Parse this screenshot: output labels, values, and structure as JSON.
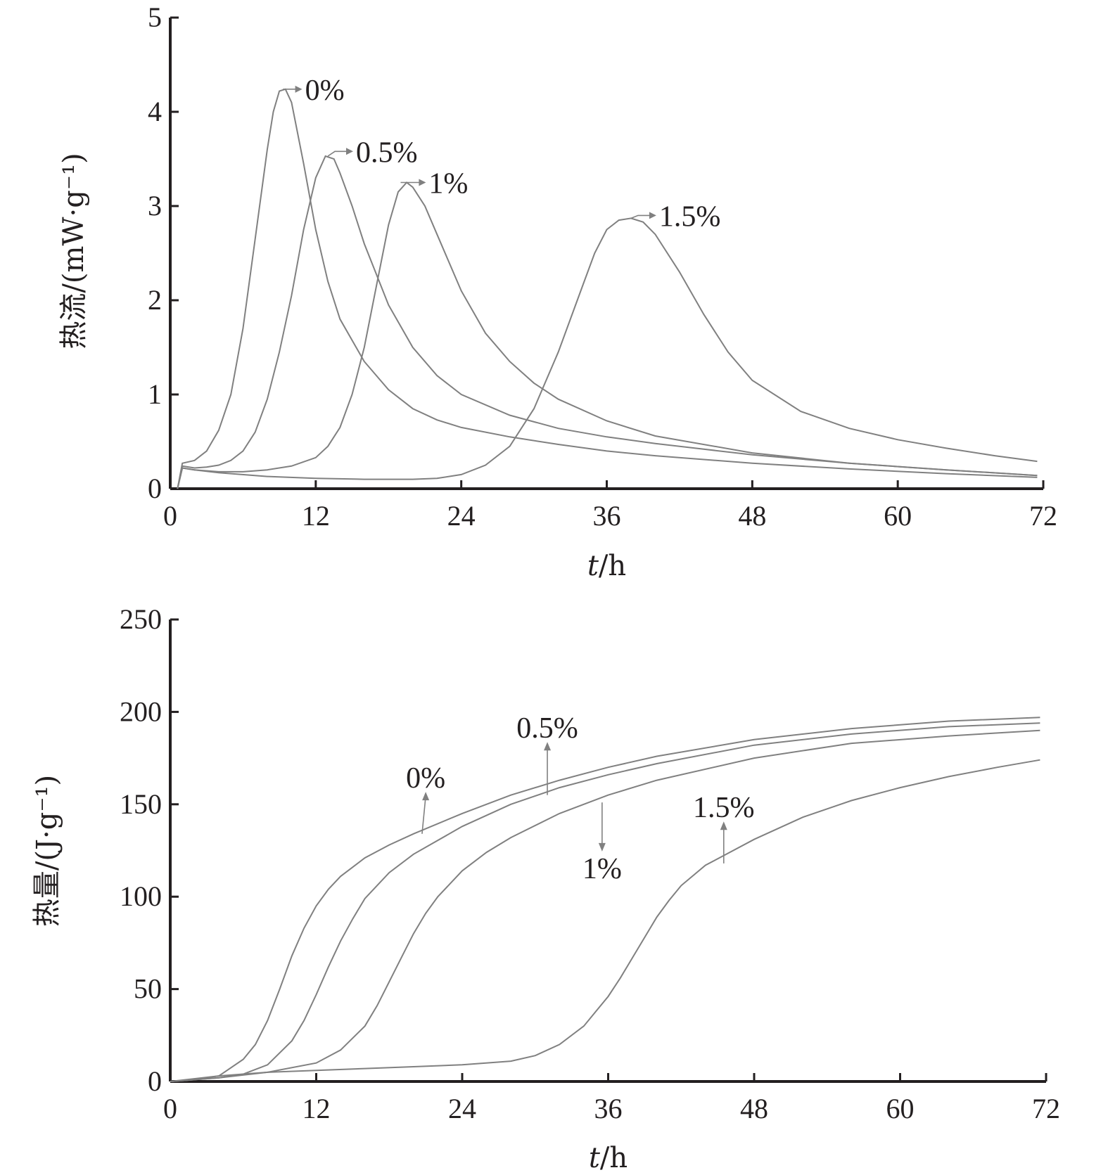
{
  "chart_data": [
    {
      "type": "line",
      "ylabel": "热流/(mW·g⁻¹)",
      "xlabel_italic": "t",
      "xlabel_rest": "/h",
      "xlim": [
        0,
        72
      ],
      "ylim": [
        0,
        5
      ],
      "xticks": [
        0,
        12,
        24,
        36,
        48,
        60,
        72
      ],
      "yticks": [
        0,
        1,
        2,
        3,
        4,
        5
      ],
      "grid": false,
      "series": [
        {
          "name": "0%",
          "x": [
            0.6,
            1,
            2,
            3,
            4,
            5,
            6,
            7,
            8,
            8.5,
            9,
            9.5,
            10,
            11,
            12,
            13,
            14,
            16,
            18,
            20,
            22,
            24,
            28,
            32,
            36,
            40,
            48,
            56,
            64,
            71.5
          ],
          "y": [
            0,
            0.27,
            0.3,
            0.4,
            0.62,
            1.0,
            1.7,
            2.65,
            3.6,
            4.0,
            4.22,
            4.24,
            4.1,
            3.45,
            2.75,
            2.2,
            1.8,
            1.35,
            1.05,
            0.85,
            0.73,
            0.65,
            0.55,
            0.47,
            0.4,
            0.35,
            0.27,
            0.21,
            0.16,
            0.12
          ]
        },
        {
          "name": "0.5%",
          "x": [
            0.6,
            1,
            2,
            3,
            4,
            5,
            6,
            7,
            8,
            9,
            10,
            11,
            12,
            12.8,
            13.5,
            14,
            15,
            16,
            18,
            20,
            22,
            24,
            28,
            32,
            36,
            40,
            48,
            56,
            64,
            71.5
          ],
          "y": [
            0,
            0.24,
            0.22,
            0.23,
            0.25,
            0.3,
            0.4,
            0.6,
            0.95,
            1.45,
            2.05,
            2.75,
            3.3,
            3.53,
            3.5,
            3.35,
            3.0,
            2.6,
            1.95,
            1.5,
            1.2,
            1.0,
            0.78,
            0.64,
            0.55,
            0.48,
            0.36,
            0.27,
            0.2,
            0.14
          ]
        },
        {
          "name": "1%",
          "x": [
            0.6,
            1,
            2,
            4,
            6,
            8,
            10,
            12,
            13,
            14,
            15,
            16,
            17,
            18,
            18.8,
            19.5,
            20,
            21,
            22,
            24,
            26,
            28,
            30,
            32,
            36,
            40,
            48,
            56,
            64,
            71.5
          ],
          "y": [
            0,
            0.22,
            0.2,
            0.18,
            0.18,
            0.2,
            0.24,
            0.33,
            0.45,
            0.65,
            1.0,
            1.5,
            2.15,
            2.8,
            3.15,
            3.25,
            3.2,
            3.0,
            2.7,
            2.1,
            1.65,
            1.35,
            1.12,
            0.95,
            0.72,
            0.56,
            0.38,
            0.27,
            0.2,
            0.14
          ]
        },
        {
          "name": "1.5%",
          "x": [
            0.6,
            1,
            2,
            4,
            8,
            12,
            16,
            20,
            22,
            24,
            26,
            28,
            30,
            32,
            34,
            35,
            36,
            37,
            38,
            39,
            40,
            42,
            44,
            46,
            48,
            52,
            56,
            60,
            64,
            68,
            71.5
          ],
          "y": [
            0,
            0.22,
            0.2,
            0.17,
            0.13,
            0.11,
            0.1,
            0.1,
            0.11,
            0.15,
            0.25,
            0.45,
            0.85,
            1.45,
            2.15,
            2.5,
            2.75,
            2.85,
            2.87,
            2.83,
            2.7,
            2.3,
            1.85,
            1.45,
            1.15,
            0.82,
            0.64,
            0.52,
            0.43,
            0.35,
            0.29
          ]
        }
      ],
      "annotations": [
        {
          "text": "0%",
          "target": [
            9.3,
            4.24
          ],
          "label_at": [
            11,
            4.24
          ]
        },
        {
          "text": "0.5%",
          "target": [
            13,
            3.53
          ],
          "label_at": [
            15.2,
            3.58
          ]
        },
        {
          "text": "1%",
          "target": [
            19,
            3.25
          ],
          "label_at": [
            21.2,
            3.25
          ]
        },
        {
          "text": "1.5%",
          "target": [
            38,
            2.87
          ],
          "label_at": [
            40.2,
            2.9
          ]
        }
      ]
    },
    {
      "type": "line",
      "ylabel": "热量/(J·g⁻¹)",
      "xlabel_italic": "t",
      "xlabel_rest": "/h",
      "xlim": [
        0,
        72
      ],
      "ylim": [
        0,
        250
      ],
      "xticks": [
        0,
        12,
        24,
        36,
        48,
        60,
        72
      ],
      "yticks": [
        0,
        50,
        100,
        150,
        200,
        250
      ],
      "grid": false,
      "series": [
        {
          "name": "0%",
          "x": [
            0,
            2,
            4,
            6,
            7,
            8,
            9,
            10,
            11,
            12,
            13,
            14,
            16,
            18,
            20,
            24,
            28,
            32,
            36,
            40,
            48,
            56,
            64,
            71.5
          ],
          "y": [
            0,
            1,
            3,
            12,
            20,
            33,
            50,
            68,
            83,
            95,
            104,
            111,
            121,
            128,
            134,
            145,
            155,
            163,
            170,
            176,
            185,
            191,
            195,
            197
          ]
        },
        {
          "name": "0.5%",
          "x": [
            0,
            2,
            4,
            6,
            8,
            10,
            11,
            12,
            13,
            14,
            15,
            16,
            18,
            20,
            24,
            28,
            32,
            36,
            40,
            48,
            56,
            64,
            71.5
          ],
          "y": [
            0,
            1,
            2,
            4,
            9,
            22,
            33,
            47,
            62,
            76,
            88,
            99,
            113,
            123,
            138,
            150,
            159,
            166,
            172,
            182,
            188,
            192,
            194
          ]
        },
        {
          "name": "1%",
          "x": [
            0,
            4,
            8,
            12,
            14,
            16,
            17,
            18,
            19,
            20,
            21,
            22,
            24,
            26,
            28,
            32,
            36,
            40,
            48,
            56,
            64,
            71.5
          ],
          "y": [
            0,
            2,
            5,
            10,
            17,
            30,
            41,
            54,
            67,
            80,
            91,
            100,
            114,
            124,
            132,
            145,
            155,
            163,
            175,
            183,
            187,
            190
          ]
        },
        {
          "name": "1.5%",
          "x": [
            0,
            4,
            8,
            12,
            16,
            20,
            24,
            28,
            30,
            32,
            34,
            35,
            36,
            37,
            38,
            39,
            40,
            41,
            42,
            44,
            46,
            48,
            52,
            56,
            60,
            64,
            68,
            71.5
          ],
          "y": [
            0,
            3,
            5,
            6,
            7,
            8,
            9,
            11,
            14,
            20,
            30,
            38,
            46,
            56,
            67,
            78,
            89,
            98,
            106,
            117,
            124,
            131,
            143,
            152,
            159,
            165,
            170,
            174
          ]
        }
      ],
      "annotations": [
        {
          "text": "0%",
          "target": [
            20.7,
            134
          ],
          "label_at": [
            21,
            159
          ]
        },
        {
          "text": "0.5%",
          "target": [
            31,
            155
          ],
          "label_at": [
            31,
            186
          ]
        },
        {
          "text": "1%",
          "target": [
            35.5,
            151
          ],
          "label_at": [
            35.5,
            110
          ]
        },
        {
          "text": "1.5%",
          "target": [
            45.5,
            118
          ],
          "label_at": [
            45.5,
            143
          ]
        }
      ]
    }
  ]
}
